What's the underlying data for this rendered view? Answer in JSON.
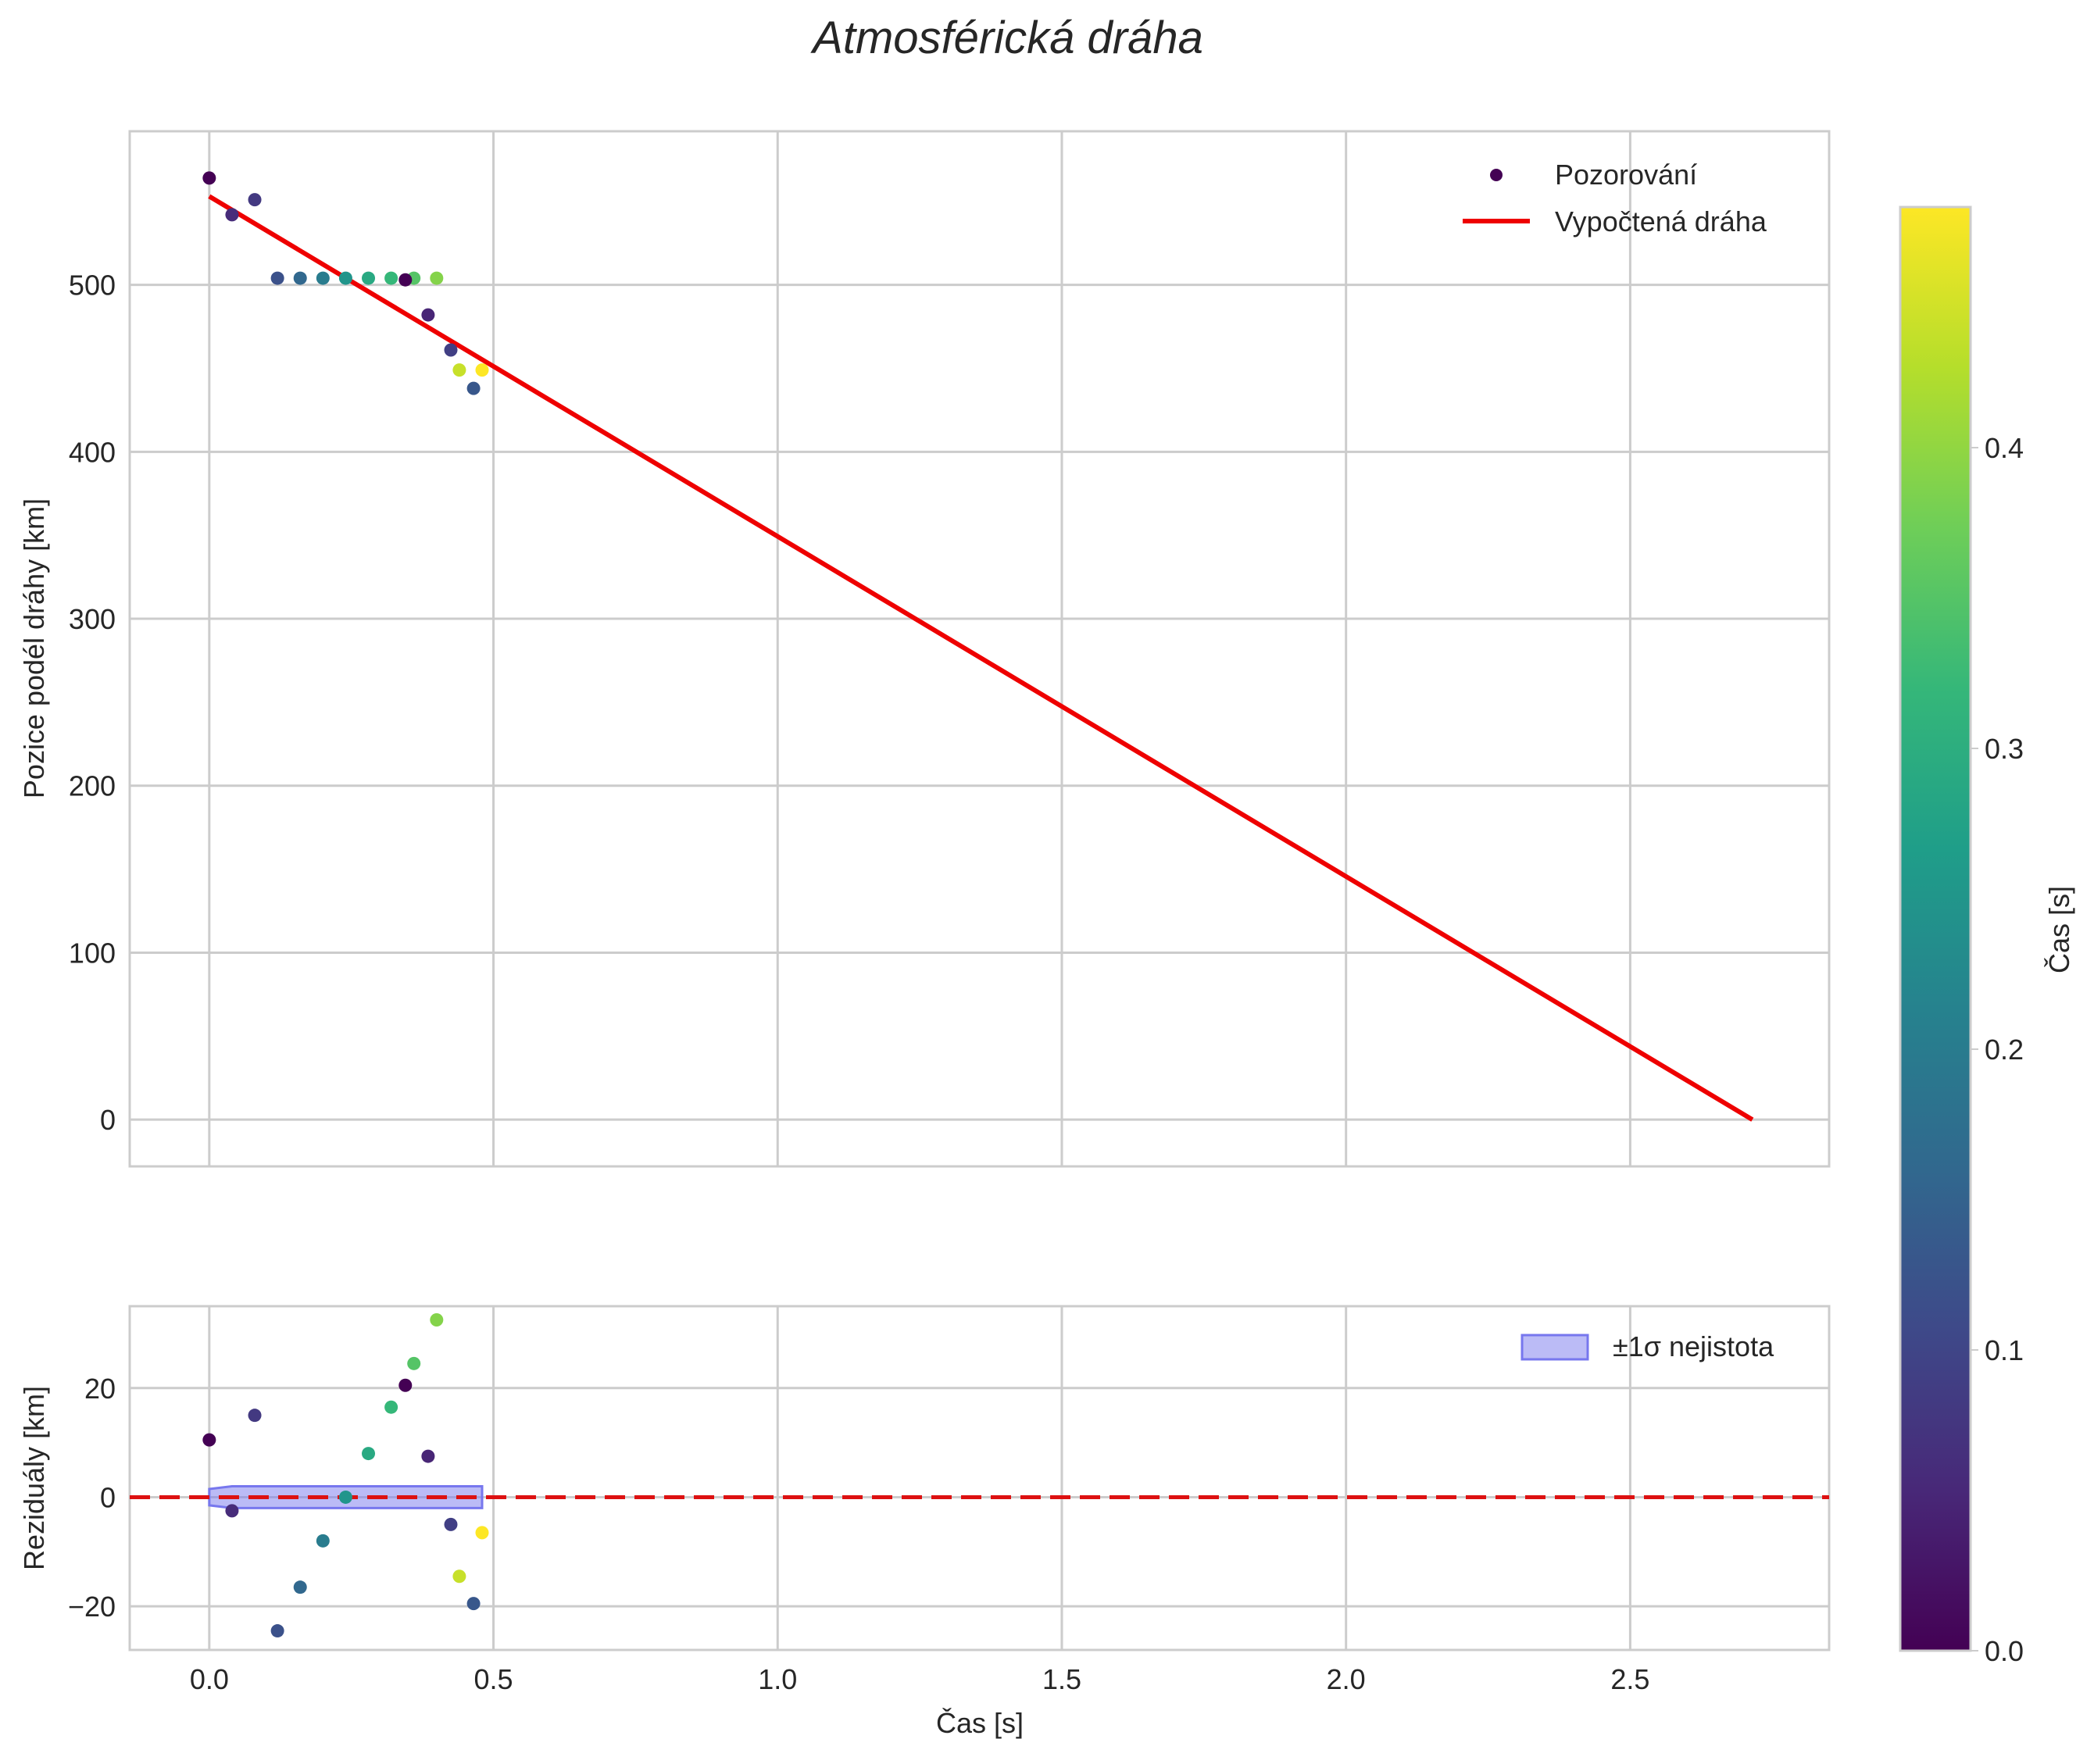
{
  "chart_data": [
    {
      "type": "scatter",
      "title": "Atmosférická dráha",
      "xlabel": "",
      "ylabel": "Pozice podél dráhy [km]",
      "xlim": [
        -0.14,
        2.85
      ],
      "ylim": [
        -28,
        592
      ],
      "xticks": [
        0.0,
        0.5,
        1.0,
        1.5,
        2.0,
        2.5
      ],
      "yticks": [
        0,
        100,
        200,
        300,
        400,
        500
      ],
      "ytick_labels": [
        "0",
        "100",
        "200",
        "300",
        "400",
        "500"
      ],
      "grid": true,
      "legend_position": "top-right",
      "observations": {
        "name": "Pozorování",
        "x": [
          0.0,
          0.04,
          0.08,
          0.12,
          0.16,
          0.2,
          0.24,
          0.28,
          0.32,
          0.36,
          0.4,
          0.345,
          0.385,
          0.425,
          0.44,
          0.465,
          0.48
        ],
        "y": [
          564,
          542,
          551,
          504,
          504,
          504,
          504,
          504,
          504,
          504,
          504,
          503,
          482,
          461,
          449,
          438,
          449
        ],
        "color_value": [
          0.0,
          0.06,
          0.08,
          0.12,
          0.16,
          0.2,
          0.25,
          0.29,
          0.32,
          0.35,
          0.39,
          0.0,
          0.05,
          0.09,
          0.44,
          0.13,
          0.48
        ]
      },
      "fit_line": {
        "name": "Vypočtená dráha",
        "color": "#ee0000",
        "x": [
          0.0,
          2.715
        ],
        "y": [
          553,
          0
        ]
      }
    },
    {
      "type": "scatter",
      "title": "",
      "xlabel": "Čas [s]",
      "ylabel": "Reziduály [km]",
      "xlim": [
        -0.14,
        2.85
      ],
      "ylim": [
        -28,
        35
      ],
      "xticks": [
        0.0,
        0.5,
        1.0,
        1.5,
        2.0,
        2.5
      ],
      "xtick_labels": [
        "0.0",
        "0.5",
        "1.0",
        "1.5",
        "2.0",
        "2.5"
      ],
      "yticks": [
        -20,
        0,
        20
      ],
      "ytick_labels": [
        "−20",
        "0",
        "20"
      ],
      "grid": true,
      "legend_position": "top-right",
      "residuals": {
        "x": [
          0.0,
          0.04,
          0.08,
          0.12,
          0.16,
          0.2,
          0.24,
          0.28,
          0.32,
          0.36,
          0.4,
          0.345,
          0.385,
          0.425,
          0.44,
          0.465,
          0.48
        ],
        "y": [
          10.5,
          -2.5,
          15,
          -24.5,
          -16.5,
          -8,
          0,
          8,
          16.5,
          24.5,
          32.5,
          20.5,
          7.5,
          -5,
          -14.5,
          -19.5,
          -6.5
        ],
        "color_value": [
          0.0,
          0.06,
          0.08,
          0.12,
          0.16,
          0.2,
          0.25,
          0.29,
          0.32,
          0.35,
          0.39,
          0.0,
          0.05,
          0.09,
          0.44,
          0.13,
          0.48
        ]
      },
      "zero_line": {
        "y": 0,
        "color": "#dd1111"
      },
      "uncertainty_band": {
        "name": "±1σ nejistota",
        "color": "#7777ee",
        "x": [
          0.0,
          0.04,
          0.48
        ],
        "lower": [
          -1.5,
          -2,
          -2
        ],
        "upper": [
          1.5,
          2,
          2
        ]
      }
    }
  ],
  "colorbar": {
    "label": "Čas [s]",
    "colormap": "viridis",
    "range": [
      0.0,
      0.48
    ],
    "ticks": [
      0.0,
      0.1,
      0.2,
      0.3,
      0.4
    ],
    "tick_labels": [
      "0.0",
      "0.1",
      "0.2",
      "0.3",
      "0.4"
    ],
    "colors": [
      "#440154",
      "#482878",
      "#3e4989",
      "#31688e",
      "#26828e",
      "#1f9e89",
      "#35b779",
      "#6ece58",
      "#b5de2b",
      "#fde725"
    ]
  }
}
